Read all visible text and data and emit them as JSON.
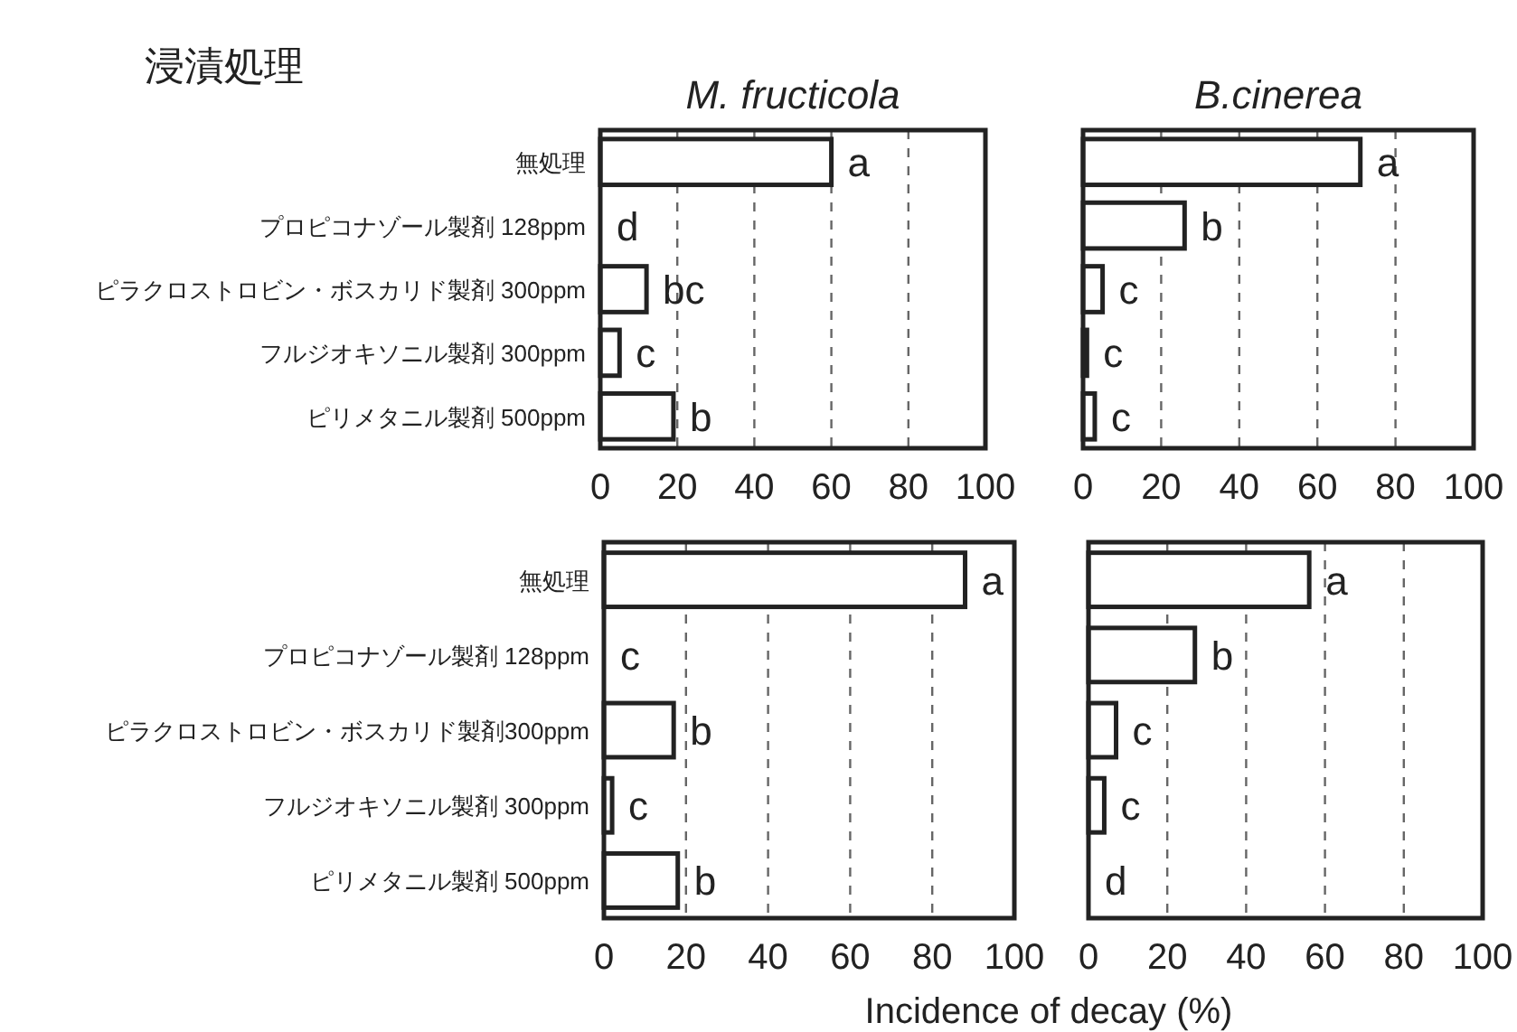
{
  "chart_data": [
    {
      "type": "bar",
      "orientation": "horizontal",
      "title": "M. fructicola",
      "subtitle": "浸漬処理",
      "categories": [
        "無処理",
        "プロピコナゾール製剤  128ppm",
        "ピラクロストロビン・ボスカリド製剤 300ppm",
        "フルジオキソニル製剤 300ppm",
        "ピリメタニル製剤  500ppm"
      ],
      "values": [
        60,
        0,
        12,
        5,
        19
      ],
      "value_labels": [
        "a",
        "d",
        "bc",
        "c",
        "b"
      ],
      "color": "#ffffff",
      "xlim": [
        0,
        100
      ],
      "xticks": [
        0,
        20,
        40,
        60,
        80,
        100
      ],
      "grid": "x"
    },
    {
      "type": "bar",
      "orientation": "horizontal",
      "title": "B.cinerea",
      "categories": [
        null,
        null,
        null,
        null,
        null
      ],
      "values": [
        71,
        26,
        5,
        1,
        3
      ],
      "value_labels": [
        "a",
        "b",
        "c",
        "c",
        "c"
      ],
      "color": "#ffffff",
      "xlim": [
        0,
        100
      ],
      "xticks": [
        0,
        20,
        40,
        60,
        80,
        100
      ],
      "grid": "x",
      "tick_labels": "x"
    },
    {
      "type": "bar",
      "orientation": "horizontal",
      "xlabel": "Incidence of decay (%)",
      "categories": [
        "無処理",
        "プロピコナゾール製剤  128ppm",
        "ピラクロストロビン・ボスカリド製剤300ppm",
        "フルジオキソニル製剤 300ppm",
        "ピリメタニル製剤  500ppm"
      ],
      "values": [
        88,
        0,
        17,
        2,
        18
      ],
      "value_labels": [
        "a",
        "c",
        "b",
        "c",
        "b"
      ],
      "color": "#ffffff",
      "xlim": [
        0,
        100
      ],
      "xticks": [
        0,
        20,
        40,
        60,
        80,
        100
      ],
      "grid": "x"
    },
    {
      "type": "bar",
      "orientation": "horizontal",
      "categories": [
        null,
        null,
        null,
        null,
        null
      ],
      "values": [
        56,
        27,
        7,
        4,
        0
      ],
      "value_labels": [
        "a",
        "b",
        "c",
        "c",
        "d"
      ],
      "color": "#ffffff",
      "xlim": [
        0,
        100
      ],
      "xticks": [
        0,
        20,
        40,
        60,
        80,
        100
      ],
      "grid": "x",
      "tick_labels": "x"
    }
  ]
}
